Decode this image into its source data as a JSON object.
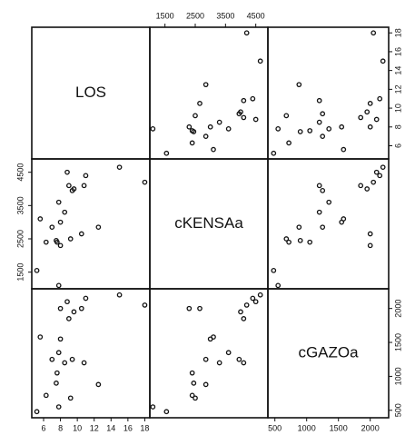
{
  "chart_data": {
    "type": "scatter_matrix",
    "color": "#111111",
    "variables": [
      {
        "name": "LOS",
        "values": [
          5.2,
          5.6,
          6.3,
          7.0,
          7.5,
          7.6,
          7.8,
          8.0,
          8.5,
          8.8,
          9.0,
          9.2,
          9.4,
          9.6,
          10.5,
          10.8,
          11.0,
          7.8,
          12.5,
          15.0,
          18.0,
          8.0
        ],
        "lim": [
          4.6,
          18.6
        ],
        "ticks": [
          6,
          8,
          10,
          12,
          14,
          16,
          18
        ]
      },
      {
        "name": "cKENSAa",
        "values": [
          1550,
          3100,
          2400,
          2850,
          2450,
          2400,
          3600,
          2300,
          3300,
          4500,
          4100,
          2500,
          3950,
          4000,
          2650,
          4100,
          4400,
          1100,
          2850,
          4650,
          4200,
          3000
        ],
        "lim": [
          1000,
          4900
        ],
        "ticks": [
          1500,
          2500,
          3500,
          4500
        ]
      },
      {
        "name": "cGAZOa",
        "values": [
          480,
          1580,
          720,
          1250,
          900,
          1050,
          1350,
          2000,
          1200,
          2100,
          1850,
          680,
          1250,
          1950,
          2000,
          1200,
          2150,
          550,
          880,
          2200,
          2050,
          1550
        ],
        "lim": [
          390,
          2290
        ],
        "ticks": [
          500,
          1000,
          1500,
          2000
        ]
      }
    ]
  }
}
